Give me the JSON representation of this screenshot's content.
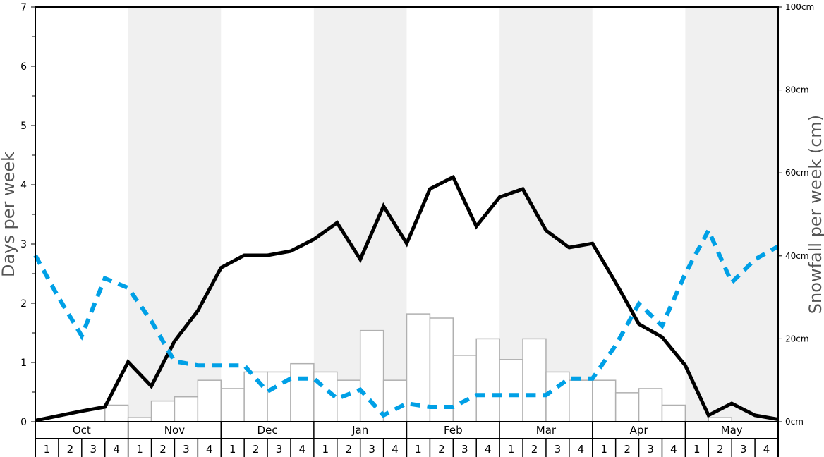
{
  "chart_data": {
    "type": "bar+line",
    "ylabel_left": "Days per week",
    "ylabel_right": "Snowfall per week (cm)",
    "ylim_left": [
      0,
      7
    ],
    "ylim_right": [
      0,
      100
    ],
    "left_ticks": [
      "0",
      "1",
      "2",
      "3",
      "4",
      "5",
      "6",
      "7"
    ],
    "right_ticks": [
      "0cm",
      "20cm",
      "40cm",
      "60cm",
      "80cm",
      "100cm"
    ],
    "months": [
      "Oct",
      "Nov",
      "Dec",
      "Jan",
      "Feb",
      "Mar",
      "Apr",
      "May"
    ],
    "weeks": [
      "1",
      "2",
      "3",
      "4"
    ],
    "shaded_months": [
      "Nov",
      "Jan",
      "Mar",
      "May"
    ],
    "snowfall_cm": [
      0,
      0,
      0,
      4,
      1,
      5,
      6,
      10,
      8,
      12,
      12,
      14,
      12,
      10,
      22,
      10,
      26,
      25,
      16,
      20,
      15,
      20,
      12,
      10,
      10,
      7,
      8,
      4,
      0,
      1,
      0,
      0
    ],
    "series": [
      {
        "style": "solid",
        "color": "#000000",
        "axis": "left",
        "values": [
          0.02,
          0.1,
          0.18,
          0.25,
          1.01,
          0.6,
          1.36,
          1.87,
          2.6,
          2.81,
          2.81,
          2.88,
          3.08,
          3.36,
          2.74,
          3.64,
          3.01,
          3.93,
          4.13,
          3.3,
          3.79,
          3.93,
          3.23,
          2.94,
          3.01,
          2.35,
          1.65,
          1.43,
          0.95,
          0.11,
          0.31,
          0.11,
          0.04
        ]
      },
      {
        "style": "dashed",
        "color": "#00a0e6",
        "axis": "left",
        "values": [
          2.81,
          2.1,
          1.45,
          2.42,
          2.26,
          1.7,
          1.02,
          0.95,
          0.95,
          0.95,
          0.51,
          0.73,
          0.73,
          0.39,
          0.54,
          0.11,
          0.31,
          0.25,
          0.25,
          0.45,
          0.45,
          0.45,
          0.45,
          0.73,
          0.73,
          1.29,
          1.99,
          1.62,
          2.5,
          3.23,
          2.35,
          2.74,
          2.96
        ]
      }
    ],
    "bar_color": "#ffffff",
    "shade_color": "#f0f0f0",
    "grid": false
  }
}
